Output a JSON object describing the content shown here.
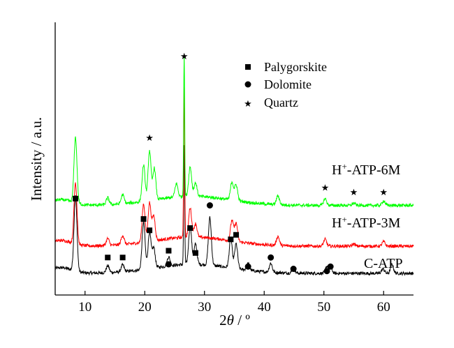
{
  "chart_data": {
    "type": "line",
    "title": "",
    "xlabel_main": "2",
    "xlabel_theta": "θ",
    "xlabel_unit": " / º",
    "ylabel": "Intensity / a.u.",
    "xlim": [
      5,
      65
    ],
    "ylim": [
      0,
      100
    ],
    "x_ticks": [
      "10",
      "20",
      "30",
      "40",
      "50",
      "60"
    ],
    "y_ticks_shown": false,
    "grid": false,
    "legend_position": "top-center",
    "legend": [
      {
        "marker": "square",
        "label": "Palygorskite"
      },
      {
        "marker": "circle",
        "label": "Dolomite"
      },
      {
        "marker": "star",
        "label": "Quartz"
      }
    ],
    "series": [
      {
        "name": "C-ATP",
        "label_prefix": "C-ATP",
        "label_sup": "",
        "label_suffix": "",
        "color": "#000000",
        "baseline": 4,
        "peaks": [
          [
            8.4,
            33
          ],
          [
            13.8,
            3
          ],
          [
            16.3,
            3
          ],
          [
            19.8,
            21
          ],
          [
            20.8,
            16
          ],
          [
            21.5,
            9
          ],
          [
            24.0,
            4
          ],
          [
            26.6,
            52
          ],
          [
            27.6,
            17
          ],
          [
            28.5,
            9
          ],
          [
            30.9,
            21
          ],
          [
            34.4,
            13
          ],
          [
            35.3,
            11
          ],
          [
            37.3,
            3
          ],
          [
            41.1,
            4
          ],
          [
            44.9,
            2
          ],
          [
            50.5,
            3
          ],
          [
            51.1,
            3
          ],
          [
            59.9,
            2
          ],
          [
            61.4,
            4
          ]
        ],
        "markers": [
          {
            "type": "square",
            "x": 8.4,
            "y": 37
          },
          {
            "type": "square",
            "x": 13.8,
            "y": 11
          },
          {
            "type": "square",
            "x": 16.3,
            "y": 11
          },
          {
            "type": "square",
            "x": 19.8,
            "y": 28
          },
          {
            "type": "square",
            "x": 20.8,
            "y": 23
          },
          {
            "type": "square",
            "x": 24.0,
            "y": 14
          },
          {
            "type": "circle",
            "x": 24.0,
            "y": 8
          },
          {
            "type": "square",
            "x": 27.6,
            "y": 24
          },
          {
            "type": "square",
            "x": 28.5,
            "y": 13
          },
          {
            "type": "circle",
            "x": 30.9,
            "y": 34
          },
          {
            "type": "square",
            "x": 34.4,
            "y": 19
          },
          {
            "type": "square",
            "x": 35.3,
            "y": 21
          },
          {
            "type": "circle",
            "x": 37.3,
            "y": 7
          },
          {
            "type": "circle",
            "x": 41.1,
            "y": 11
          },
          {
            "type": "circle",
            "x": 44.9,
            "y": 6
          },
          {
            "type": "circle",
            "x": 50.5,
            "y": 5
          },
          {
            "type": "circle",
            "x": 51.1,
            "y": 7
          }
        ]
      },
      {
        "name": "H+-ATP-3M",
        "label_prefix": "H",
        "label_sup": "+",
        "label_suffix": "-ATP-3M",
        "color": "#ff0000",
        "baseline": 16,
        "peaks": [
          [
            8.4,
            27
          ],
          [
            13.8,
            3
          ],
          [
            16.3,
            4
          ],
          [
            19.8,
            17
          ],
          [
            20.8,
            17
          ],
          [
            21.5,
            11
          ],
          [
            26.6,
            66
          ],
          [
            27.6,
            13
          ],
          [
            28.5,
            6
          ],
          [
            34.6,
            9
          ],
          [
            35.3,
            8
          ],
          [
            42.3,
            4
          ],
          [
            50.2,
            3
          ],
          [
            55,
            1
          ],
          [
            60,
            2
          ]
        ],
        "markers": []
      },
      {
        "name": "H+-ATP-6M",
        "label_prefix": "H",
        "label_sup": "+",
        "label_suffix": "-ATP-6M",
        "color": "#00ff00",
        "baseline": 34,
        "peaks": [
          [
            8.4,
            29
          ],
          [
            13.8,
            3
          ],
          [
            16.3,
            4
          ],
          [
            19.8,
            16
          ],
          [
            20.8,
            22
          ],
          [
            21.6,
            14
          ],
          [
            25.3,
            6
          ],
          [
            26.6,
            63
          ],
          [
            27.6,
            13
          ],
          [
            28.5,
            6
          ],
          [
            34.6,
            8
          ],
          [
            35.3,
            7
          ],
          [
            42.3,
            4
          ],
          [
            50.2,
            3
          ],
          [
            55,
            1
          ],
          [
            60,
            2
          ]
        ],
        "markers": [
          {
            "type": "star",
            "x": 20.8,
            "y": 64
          },
          {
            "type": "star",
            "x": 26.6,
            "y": 100
          },
          {
            "type": "star",
            "x": 50.2,
            "y": 42
          },
          {
            "type": "star",
            "x": 55.0,
            "y": 40
          },
          {
            "type": "star",
            "x": 60.0,
            "y": 40
          }
        ]
      }
    ]
  }
}
